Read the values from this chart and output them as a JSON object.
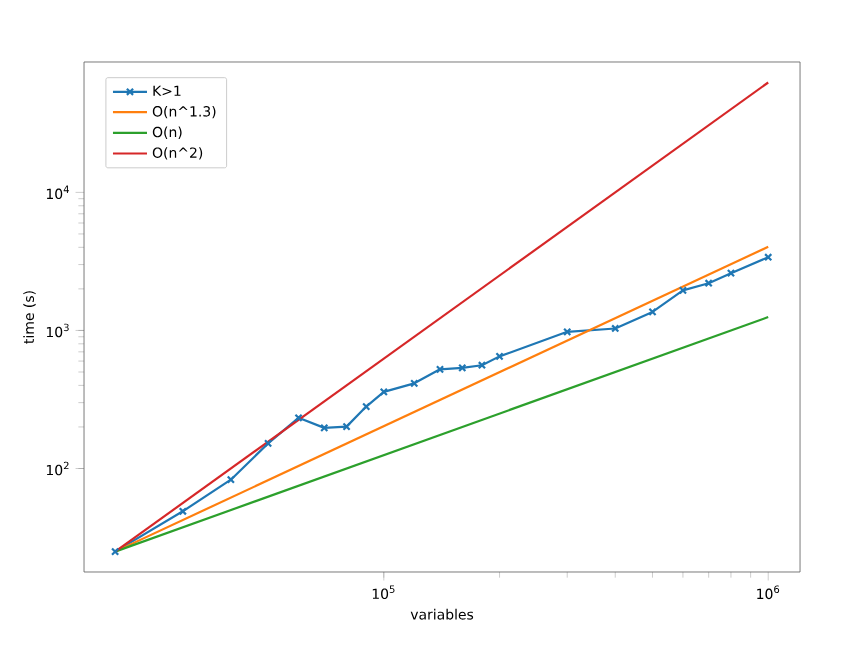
{
  "chart_data": {
    "type": "line",
    "xlabel": "variables",
    "ylabel": "time (s)",
    "log": "xy",
    "legend": "top left",
    "grid": false,
    "xlim": [
      16600,
      1210000
    ],
    "ylim": [
      17.8,
      88000
    ],
    "xticks": [
      {
        "value": 100000,
        "label": "10$^{5}$"
      },
      {
        "value": 1000000,
        "label": "10$^{6}$"
      }
    ],
    "yticks": [
      {
        "value": 100,
        "label": "10$^{2}$"
      },
      {
        "value": 1000,
        "label": "10$^{3}$"
      },
      {
        "value": 10000,
        "label": "10$^{4}$"
      }
    ],
    "series": [
      {
        "name": "K>1",
        "color": "#1f77b4",
        "marker": "cross",
        "x": [
          20000,
          30000,
          40000,
          50000,
          60000,
          70000,
          80000,
          90000,
          100000,
          120000,
          140000,
          160000,
          180000,
          200000,
          300000,
          400000,
          500000,
          600000,
          700000,
          800000,
          1000000
        ],
        "values": [
          25,
          49,
          83,
          152,
          233,
          197,
          201,
          281,
          359,
          414,
          523,
          535,
          560,
          649,
          977,
          1033,
          1362,
          1950,
          2197,
          2600,
          3390
        ]
      },
      {
        "name": "O(n^1.3)",
        "color": "#ff7f0e",
        "marker": "none",
        "x": [
          20000,
          1000000
        ],
        "values": [
          25,
          4035
        ]
      },
      {
        "name": "O(n)",
        "color": "#2ca02c",
        "marker": "none",
        "x": [
          20000,
          1000000
        ],
        "values": [
          25,
          1250
        ]
      },
      {
        "name": "O(n^2)",
        "color": "#d62728",
        "marker": "none",
        "x": [
          20000,
          1000000
        ],
        "values": [
          25,
          62500
        ]
      }
    ]
  }
}
